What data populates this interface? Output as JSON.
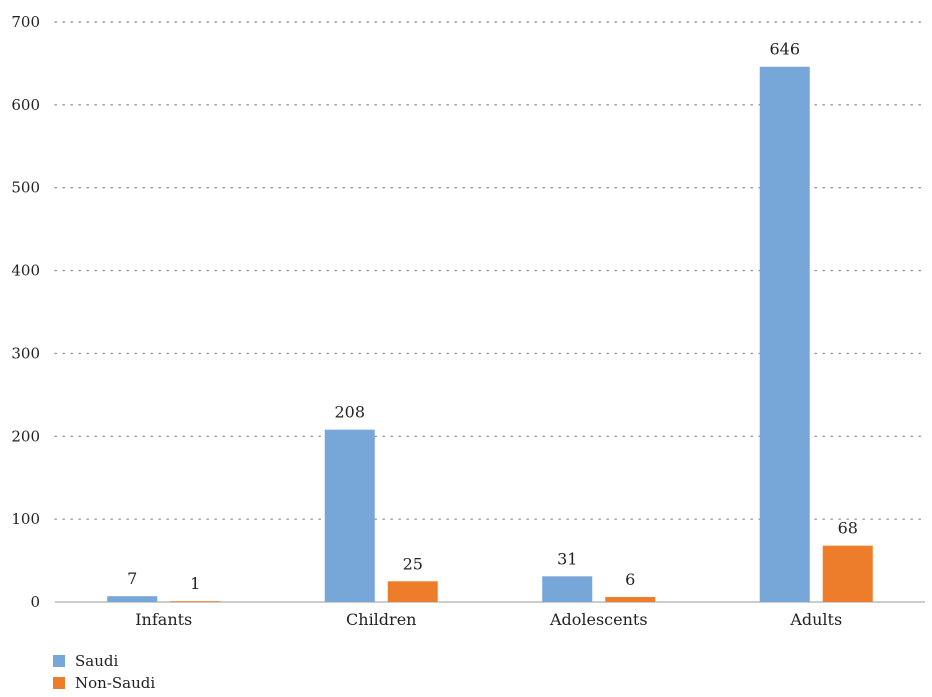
{
  "chart_data": {
    "type": "bar",
    "categories": [
      "Infants",
      "Children",
      "Adolescents",
      "Adults"
    ],
    "series": [
      {
        "name": "Saudi",
        "values": [
          7,
          208,
          31,
          646
        ],
        "color": "#77a7d8"
      },
      {
        "name": "Non-Saudi",
        "values": [
          1,
          25,
          6,
          68
        ],
        "color": "#ee7d2b"
      }
    ],
    "title": "",
    "xlabel": "",
    "ylabel": "",
    "ylim": [
      0,
      700
    ],
    "yticks": [
      "0",
      "100",
      "200",
      "300",
      "400",
      "500",
      "600",
      "700"
    ],
    "grid": "dotted horizontal",
    "legend_position": "bottom-left"
  }
}
